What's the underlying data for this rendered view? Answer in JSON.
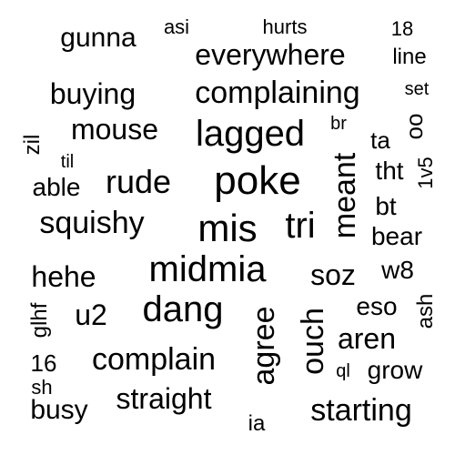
{
  "words": [
    {
      "text": "gunna",
      "rotated": false
    },
    {
      "text": "asi",
      "rotated": false
    },
    {
      "text": "hurts",
      "rotated": false
    },
    {
      "text": "18",
      "rotated": false
    },
    {
      "text": "everywhere",
      "rotated": false
    },
    {
      "text": "line",
      "rotated": false
    },
    {
      "text": "buying",
      "rotated": false
    },
    {
      "text": "complaining",
      "rotated": false
    },
    {
      "text": "set",
      "rotated": false
    },
    {
      "text": "mouse",
      "rotated": false
    },
    {
      "text": "lagged",
      "rotated": false
    },
    {
      "text": "br",
      "rotated": false
    },
    {
      "text": "oo",
      "rotated": true
    },
    {
      "text": "zil",
      "rotated": true
    },
    {
      "text": "ta",
      "rotated": false
    },
    {
      "text": "til",
      "rotated": false
    },
    {
      "text": "poke",
      "rotated": false
    },
    {
      "text": "tht",
      "rotated": false
    },
    {
      "text": "1v5",
      "rotated": true
    },
    {
      "text": "able",
      "rotated": false
    },
    {
      "text": "rude",
      "rotated": false
    },
    {
      "text": "meant",
      "rotated": true
    },
    {
      "text": "bt",
      "rotated": false
    },
    {
      "text": "squishy",
      "rotated": false
    },
    {
      "text": "mis",
      "rotated": false
    },
    {
      "text": "tri",
      "rotated": false
    },
    {
      "text": "bear",
      "rotated": false
    },
    {
      "text": "midmia",
      "rotated": false
    },
    {
      "text": "hehe",
      "rotated": false
    },
    {
      "text": "soz",
      "rotated": false
    },
    {
      "text": "w8",
      "rotated": false
    },
    {
      "text": "glhf",
      "rotated": true
    },
    {
      "text": "u2",
      "rotated": false
    },
    {
      "text": "dang",
      "rotated": false
    },
    {
      "text": "agree",
      "rotated": true
    },
    {
      "text": "ouch",
      "rotated": true
    },
    {
      "text": "eso",
      "rotated": false
    },
    {
      "text": "ash",
      "rotated": true
    },
    {
      "text": "aren",
      "rotated": false
    },
    {
      "text": "16",
      "rotated": false
    },
    {
      "text": "complain",
      "rotated": false
    },
    {
      "text": "ql",
      "rotated": false
    },
    {
      "text": "grow",
      "rotated": false
    },
    {
      "text": "sh",
      "rotated": false
    },
    {
      "text": "straight",
      "rotated": false
    },
    {
      "text": "busy",
      "rotated": false
    },
    {
      "text": "starting",
      "rotated": false
    },
    {
      "text": "ia",
      "rotated": false
    }
  ]
}
